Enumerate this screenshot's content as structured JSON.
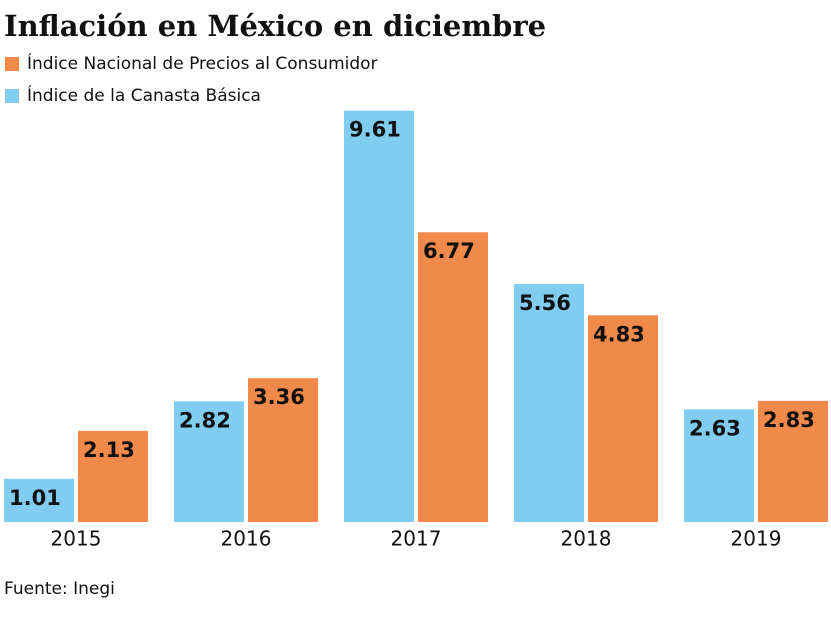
{
  "chart_data": {
    "type": "bar",
    "title": "Inflación en México en diciembre",
    "categories": [
      "2015",
      "2016",
      "2017",
      "2018",
      "2019"
    ],
    "series": [
      {
        "name": "Índice Nacional de Precios al Consumidor",
        "color": "#f0894a",
        "values": [
          2.13,
          3.36,
          6.77,
          4.83,
          2.83
        ]
      },
      {
        "name": "Índice de la Canasta Básica",
        "color": "#80cdf1",
        "values": [
          1.01,
          2.82,
          9.61,
          5.56,
          2.63
        ]
      }
    ],
    "source": "Fuente: Inegi"
  }
}
